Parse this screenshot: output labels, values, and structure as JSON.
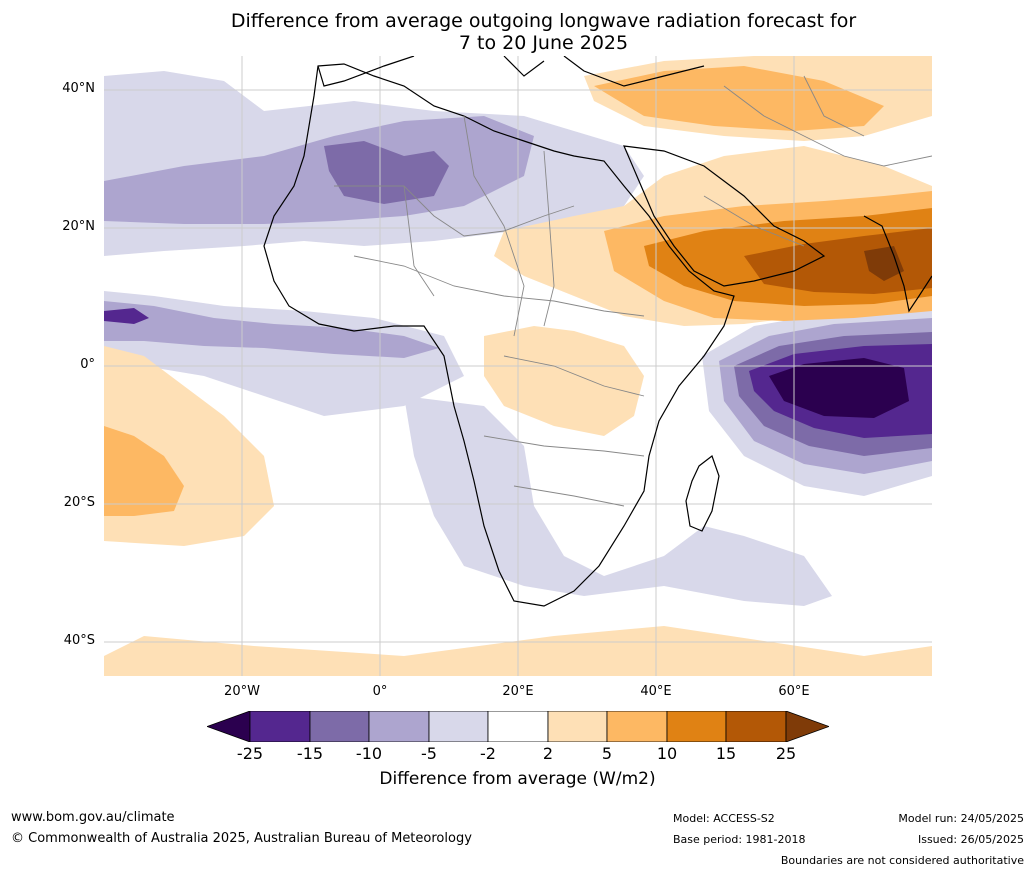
{
  "title_line1": "Difference from average outgoing longwave radiation forecast for",
  "title_line2": "7 to 20 June 2025",
  "map": {
    "lat_labels": [
      "40°N",
      "20°N",
      "0°",
      "20°S",
      "40°S"
    ],
    "lon_labels": [
      "20°W",
      "0°",
      "20°E",
      "40°E",
      "60°E"
    ]
  },
  "colorbar": {
    "tick_labels": [
      "-25",
      "-15",
      "-10",
      "-5",
      "-2",
      "2",
      "5",
      "10",
      "15",
      "25"
    ],
    "colors": [
      "#2b004f",
      "#54278f",
      "#7d6ba8",
      "#ada5cf",
      "#d8d8ea",
      "#ffffff",
      "#fee0b6",
      "#fdb863",
      "#e08214",
      "#b35806",
      "#7f3b08"
    ],
    "title": "Difference from average (W/m2)"
  },
  "footer": {
    "website": "www.bom.gov.au/climate",
    "copyright": "© Commonwealth of Australia 2025, Australian Bureau of Meteorology",
    "model": "Model: ACCESS-S2",
    "base_period": "Base period: 1981-2018",
    "model_run": "Model run: 24/05/2025",
    "issued": "Issued: 26/05/2025",
    "boundaries_note": "Boundaries are not considered authoritative"
  }
}
